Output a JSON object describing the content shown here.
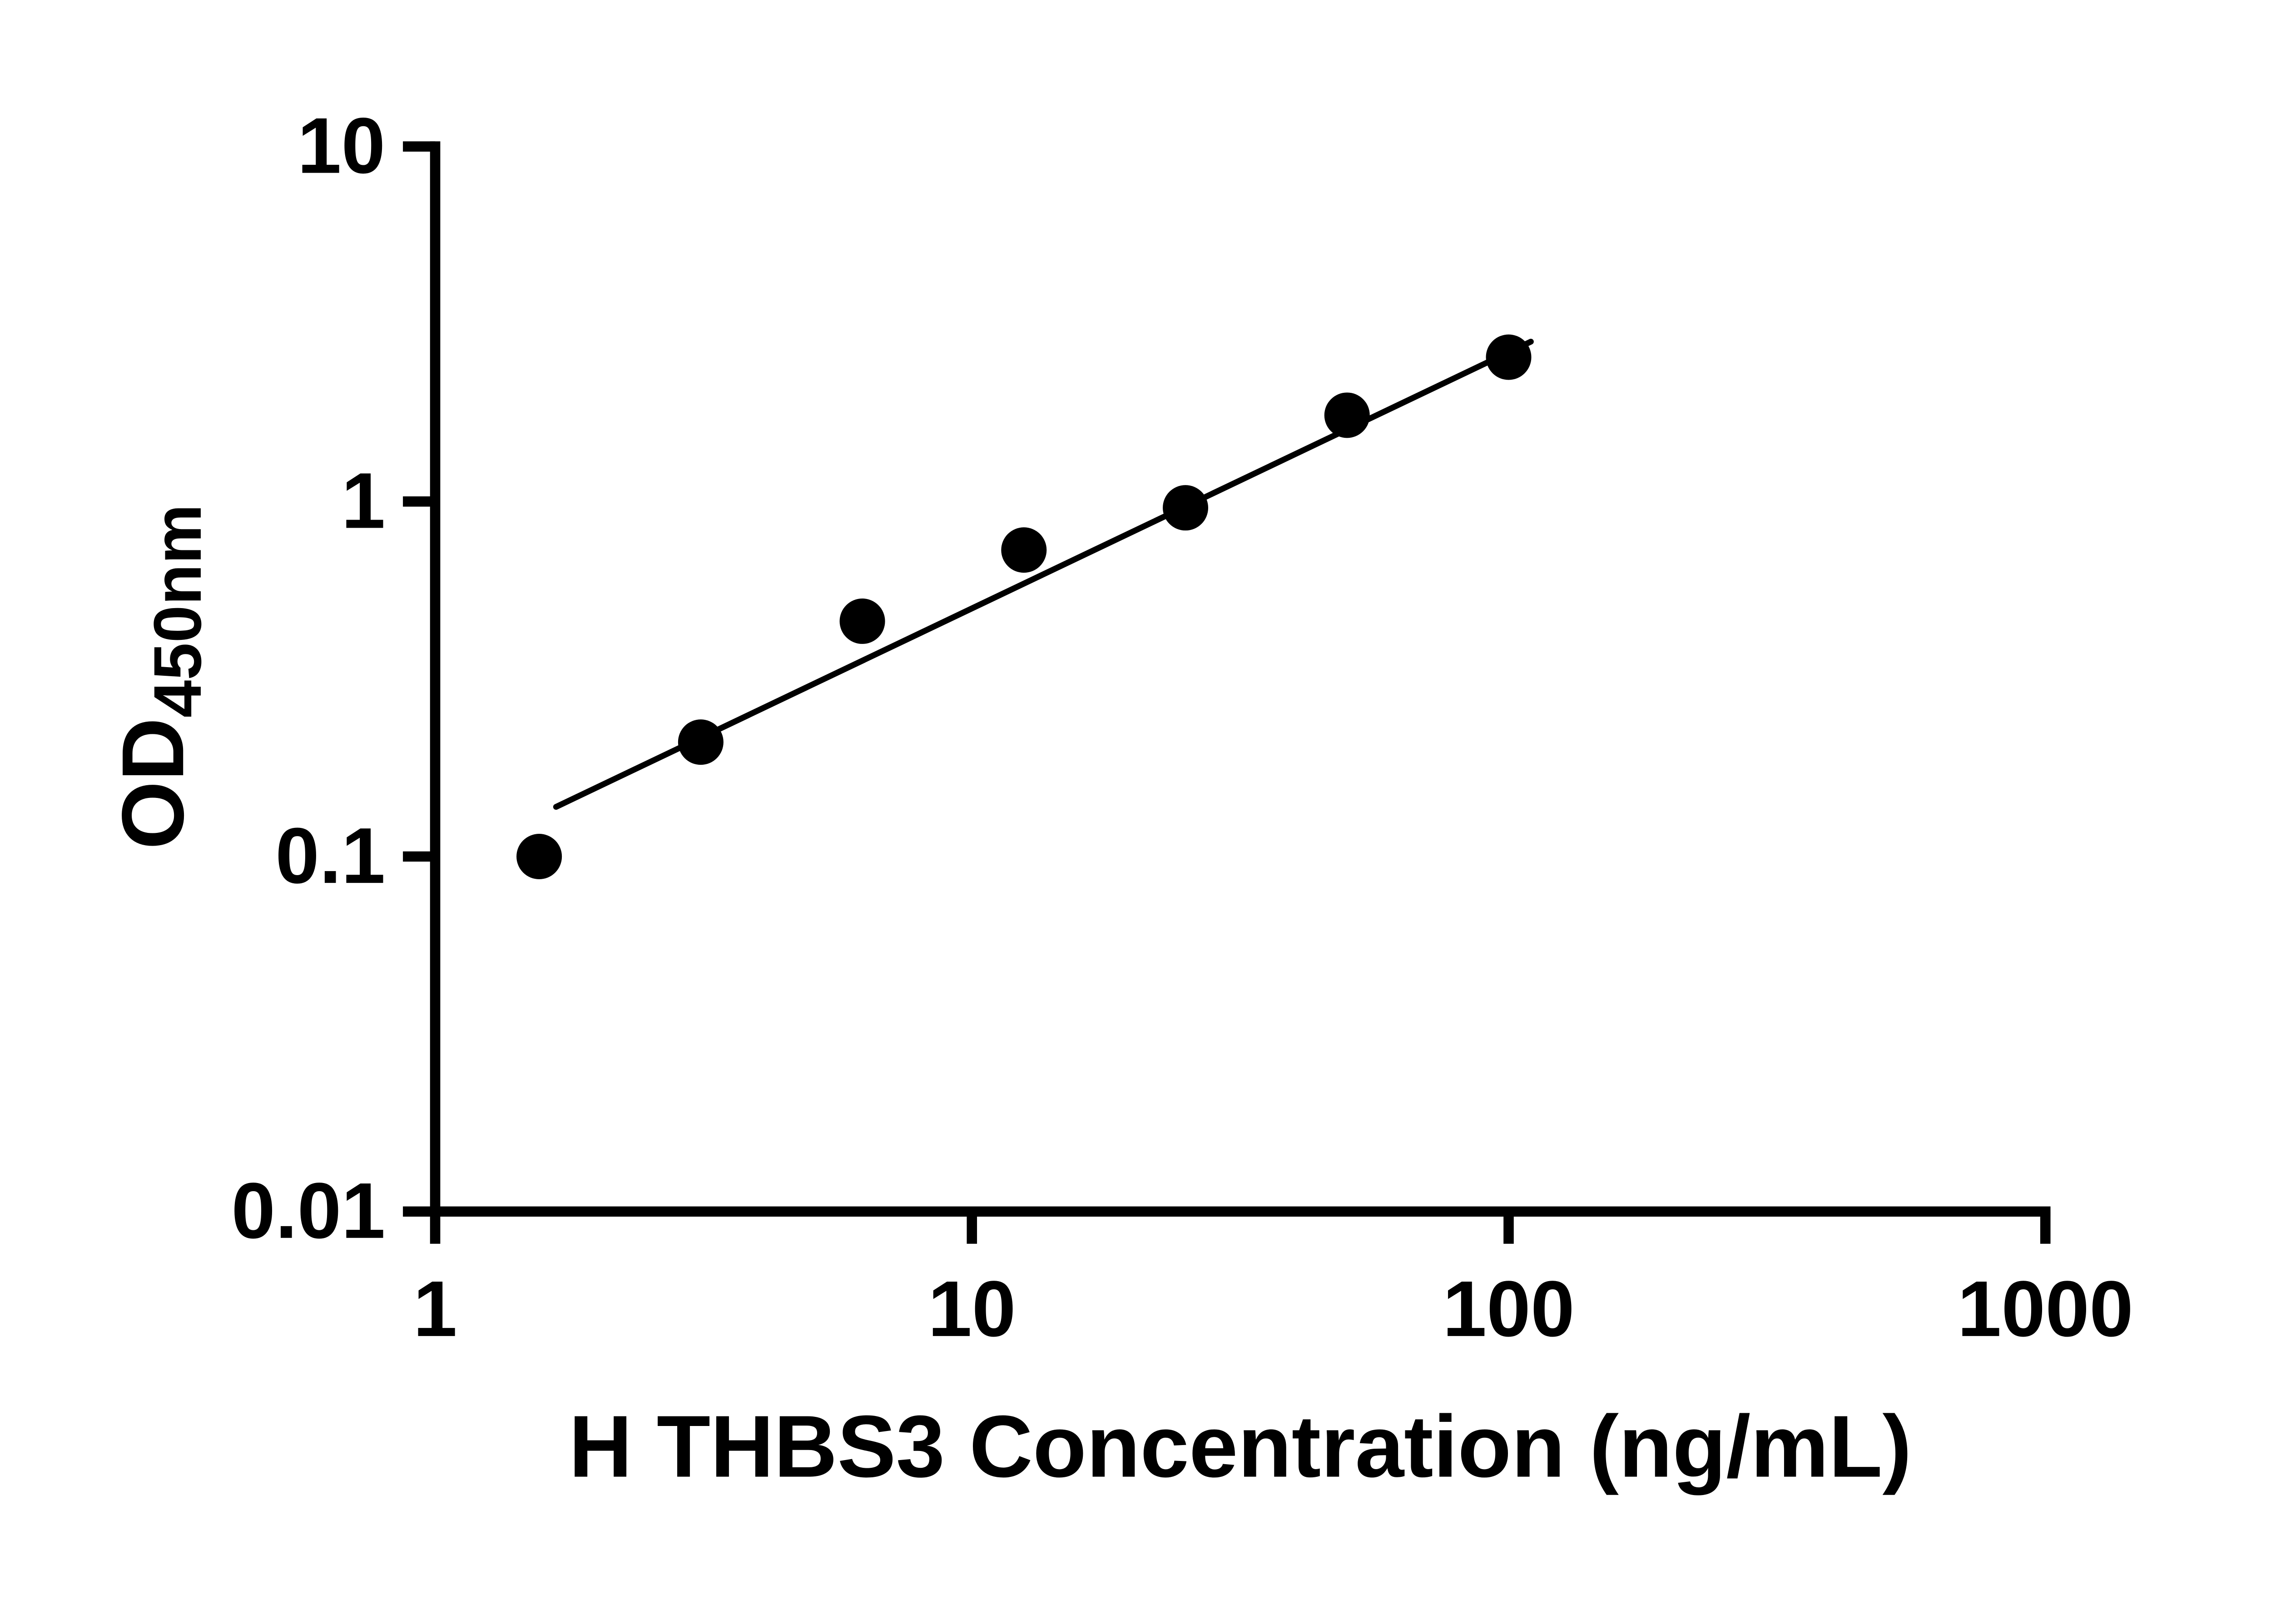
{
  "chart_data": {
    "type": "scatter",
    "title": "",
    "xlabel": "H THBS3 Concentration (ng/mL)",
    "ylabel_main": "OD",
    "ylabel_sub": "450nm",
    "x_scale": "log",
    "y_scale": "log",
    "xlim": [
      1,
      1000
    ],
    "ylim": [
      0.01,
      10
    ],
    "x_ticks": [
      1,
      10,
      100,
      1000
    ],
    "y_ticks": [
      0.01,
      0.1,
      1,
      10
    ],
    "grid": false,
    "legend": "none",
    "points": [
      {
        "x": 1.5625,
        "y": 0.1
      },
      {
        "x": 3.125,
        "y": 0.21
      },
      {
        "x": 6.25,
        "y": 0.46
      },
      {
        "x": 12.5,
        "y": 0.73
      },
      {
        "x": 25,
        "y": 0.96
      },
      {
        "x": 50,
        "y": 1.75
      },
      {
        "x": 100,
        "y": 2.55
      }
    ],
    "trend_line": {
      "x1": 1.68,
      "y1": 0.138,
      "x2": 110,
      "y2": 2.82
    },
    "marker_color": "#000000",
    "line_color": "#000000",
    "axis_color": "#000000"
  }
}
